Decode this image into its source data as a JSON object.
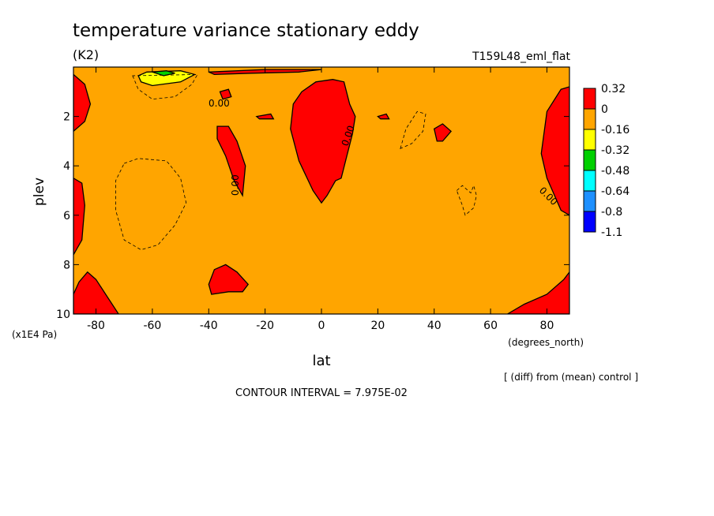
{
  "chart_data": {
    "type": "heatmap",
    "title": "temperature variance stationary eddy",
    "units_label": "(K2)",
    "run_label": "T159L48_eml_flat",
    "xlabel": "lat",
    "x_units": "(degrees_north)",
    "ylabel": "plev",
    "y_units": "(x1E4 Pa)",
    "xlim": [
      -88,
      88
    ],
    "ylim": [
      10,
      0
    ],
    "x_ticks": [
      -80,
      -60,
      -40,
      -20,
      0,
      20,
      40,
      60,
      80
    ],
    "x_tick_labels": [
      "-80",
      "-60",
      "-40",
      "-20",
      "0",
      "20",
      "40",
      "60",
      "80"
    ],
    "y_ticks": [
      2,
      4,
      6,
      8,
      10
    ],
    "y_tick_labels": [
      "2",
      "4",
      "6",
      "8",
      "10"
    ],
    "colorbar": {
      "labels": [
        "0.32",
        "0",
        "-0.16",
        "-0.32",
        "-0.48",
        "-0.64",
        "-0.8",
        "-1.1"
      ],
      "colors": [
        "#ff0000",
        "#ffa500",
        "#ffff00",
        "#00d000",
        "#00ffff",
        "#1e90ff",
        "#0000ff"
      ]
    },
    "contour_labels": [
      "0.00",
      "0.00",
      "0.00",
      "0.00",
      "0.00"
    ],
    "footnote": "[ (diff) from (mean) control ]",
    "contour_interval": "CONTOUR INTERVAL = 7.975E-02",
    "regions": [
      {
        "fill": "#ff0000",
        "pts": [
          [
            -88,
            0.3
          ],
          [
            -84,
            0.7
          ],
          [
            -82,
            1.5
          ],
          [
            -84,
            2.2
          ],
          [
            -88,
            2.6
          ]
        ]
      },
      {
        "fill": "#ff0000",
        "pts": [
          [
            -88,
            4.5
          ],
          [
            -85,
            4.7
          ],
          [
            -84,
            5.6
          ],
          [
            -85,
            7.0
          ],
          [
            -88,
            7.6
          ]
        ]
      },
      {
        "fill": "#ff0000",
        "pts": [
          [
            -88,
            9.2
          ],
          [
            -86,
            8.7
          ],
          [
            -83,
            8.3
          ],
          [
            -80,
            8.6
          ],
          [
            -76,
            9.3
          ],
          [
            -72,
            10
          ],
          [
            -88,
            10
          ]
        ]
      },
      {
        "fill": "#ff0000",
        "pts": [
          [
            -40,
            8.8
          ],
          [
            -38,
            8.2
          ],
          [
            -34,
            8.0
          ],
          [
            -30,
            8.3
          ],
          [
            -26,
            8.8
          ],
          [
            -28,
            9.1
          ],
          [
            -33,
            9.1
          ],
          [
            -39,
            9.2
          ]
        ]
      },
      {
        "fill": "#ff0000",
        "pts": [
          [
            -40,
            0.2
          ],
          [
            -20,
            0.1
          ],
          [
            0,
            0.1
          ],
          [
            -8,
            0.2
          ],
          [
            -25,
            0.25
          ],
          [
            -38,
            0.3
          ]
        ]
      },
      {
        "fill": "#ff0000",
        "pts": [
          [
            -36,
            1.0
          ],
          [
            -33,
            0.9
          ],
          [
            -32,
            1.2
          ],
          [
            -35,
            1.3
          ]
        ]
      },
      {
        "fill": "#ff0000",
        "pts": [
          [
            -37,
            2.4
          ],
          [
            -33,
            2.4
          ],
          [
            -30,
            3.0
          ],
          [
            -27,
            4.0
          ],
          [
            -28,
            5.2
          ],
          [
            -31,
            4.6
          ],
          [
            -34,
            3.6
          ],
          [
            -37,
            2.9
          ]
        ]
      },
      {
        "fill": "#ff0000",
        "pts": [
          [
            -23,
            2.0
          ],
          [
            -18,
            1.9
          ],
          [
            -17,
            2.1
          ],
          [
            -22,
            2.1
          ]
        ]
      },
      {
        "fill": "#ff0000",
        "pts": [
          [
            -10,
            1.5
          ],
          [
            -7,
            1.0
          ],
          [
            -2,
            0.6
          ],
          [
            4,
            0.5
          ],
          [
            8,
            0.6
          ],
          [
            10,
            1.5
          ],
          [
            12,
            2.0
          ],
          [
            11,
            2.7
          ],
          [
            9,
            3.6
          ],
          [
            7,
            4.5
          ],
          [
            5,
            4.6
          ],
          [
            2,
            5.2
          ],
          [
            0,
            5.5
          ],
          [
            -3,
            5.0
          ],
          [
            -8,
            3.8
          ],
          [
            -11,
            2.5
          ]
        ]
      },
      {
        "fill": "#ff0000",
        "pts": [
          [
            20,
            2.0
          ],
          [
            23,
            1.9
          ],
          [
            24,
            2.1
          ],
          [
            21,
            2.1
          ]
        ]
      },
      {
        "fill": "#ff0000",
        "pts": [
          [
            40,
            2.5
          ],
          [
            43,
            2.3
          ],
          [
            46,
            2.6
          ],
          [
            43,
            3.0
          ],
          [
            41,
            3.0
          ]
        ]
      },
      {
        "fill": "#ff0000",
        "pts": [
          [
            88,
            0.8
          ],
          [
            85,
            0.9
          ],
          [
            80,
            1.8
          ],
          [
            78,
            3.5
          ],
          [
            80,
            4.5
          ],
          [
            85,
            5.8
          ],
          [
            88,
            6.0
          ]
        ]
      },
      {
        "fill": "#ff0000",
        "pts": [
          [
            66,
            10
          ],
          [
            72,
            9.6
          ],
          [
            80,
            9.2
          ],
          [
            86,
            8.6
          ],
          [
            88,
            8.3
          ],
          [
            88,
            10
          ]
        ]
      },
      {
        "fill": "#ffff00",
        "pts": [
          [
            -65,
            0.35
          ],
          [
            -62,
            0.2
          ],
          [
            -50,
            0.15
          ],
          [
            -45,
            0.3
          ],
          [
            -50,
            0.6
          ],
          [
            -60,
            0.75
          ],
          [
            -64,
            0.6
          ]
        ]
      },
      {
        "fill": "#00d000",
        "pts": [
          [
            -60,
            0.2
          ],
          [
            -55,
            0.15
          ],
          [
            -52,
            0.25
          ],
          [
            -56,
            0.35
          ]
        ]
      }
    ],
    "dashed_contours": [
      [
        [
          -70,
          3.9
        ],
        [
          -65,
          3.7
        ],
        [
          -55,
          3.8
        ],
        [
          -50,
          4.5
        ],
        [
          -48,
          5.5
        ],
        [
          -52,
          6.4
        ],
        [
          -58,
          7.2
        ],
        [
          -64,
          7.4
        ],
        [
          -70,
          7.0
        ],
        [
          -73,
          5.8
        ],
        [
          -73,
          4.6
        ]
      ],
      [
        [
          -67,
          0.35
        ],
        [
          -65,
          0.9
        ],
        [
          -60,
          1.3
        ],
        [
          -52,
          1.2
        ],
        [
          -46,
          0.7
        ],
        [
          -44,
          0.3
        ]
      ],
      [
        [
          28,
          3.3
        ],
        [
          30,
          2.5
        ],
        [
          34,
          1.8
        ],
        [
          37,
          1.9
        ],
        [
          36,
          2.6
        ],
        [
          32,
          3.1
        ]
      ],
      [
        [
          48,
          5.0
        ],
        [
          50,
          4.8
        ],
        [
          53,
          5.1
        ],
        [
          54,
          4.8
        ],
        [
          55,
          5.2
        ],
        [
          54,
          5.7
        ],
        [
          51,
          6.0
        ],
        [
          50,
          5.6
        ]
      ]
    ]
  }
}
